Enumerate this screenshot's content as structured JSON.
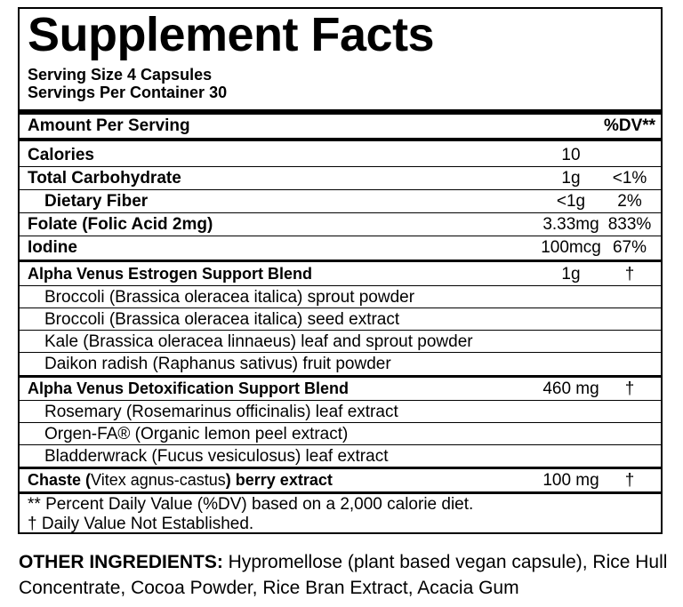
{
  "title": "Supplement Facts",
  "serving_size": "Serving Size 4 Capsules",
  "servings_per_container": "Servings Per Container 30",
  "header": {
    "amount_label": "Amount Per Serving",
    "dv_label": "%DV**"
  },
  "nutrients": [
    {
      "name": "Calories",
      "amount": "10",
      "dv": ""
    },
    {
      "name": "Total Carbohydrate",
      "amount": "1g",
      "dv": "<1%"
    },
    {
      "name": "Dietary Fiber",
      "amount": "<1g",
      "dv": "2%"
    },
    {
      "name": "Folate (Folic Acid 2mg)",
      "amount": "3.33mg",
      "dv": "833%"
    },
    {
      "name": "Iodine",
      "amount": "100mcg",
      "dv": "67%"
    }
  ],
  "blend1": {
    "name": "Alpha Venus Estrogen Support Blend",
    "amount": "1g",
    "dv": "†",
    "items": [
      "Broccoli (Brassica oleracea italica) sprout powder",
      "Broccoli (Brassica oleracea italica) seed extract",
      "Kale (Brassica oleracea linnaeus) leaf and sprout powder",
      "Daikon radish (Raphanus sativus) fruit powder"
    ]
  },
  "blend2": {
    "name": "Alpha Venus Detoxification Support Blend",
    "amount": "460 mg",
    "dv": "†",
    "items": [
      "Rosemary (Rosemarinus officinalis) leaf extract",
      "Orgen-FA® (Organic lemon peel extract)",
      "Bladderwrack (Fucus vesiculosus) leaf extract"
    ]
  },
  "chaste": {
    "name_a": "Chaste (",
    "name_b": "Vitex agnus-castus",
    "name_c": ") berry extract",
    "amount": "100 mg",
    "dv": "†"
  },
  "footnotes": [
    "** Percent Daily Value (%DV) based on a 2,000 calorie diet.",
    "† Daily Value Not Established."
  ],
  "other_ingredients": {
    "label": "OTHER INGREDIENTS:",
    "text": " Hypromellose (plant based vegan capsule), Rice Hull Concentrate, Cocoa Powder, Rice Bran Extract, Acacia Gum"
  }
}
